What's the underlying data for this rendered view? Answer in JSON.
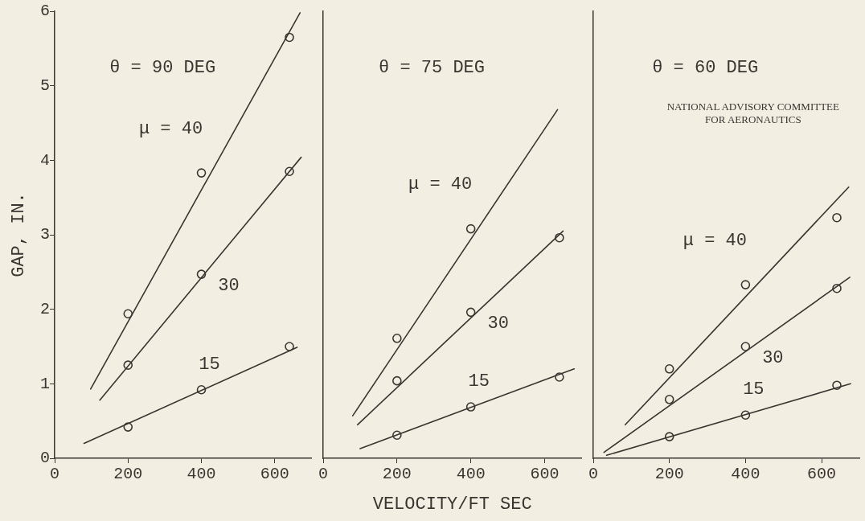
{
  "chart_data": [
    {
      "type": "scatter",
      "title": "θ = 90 DEG",
      "ylabel": "GAP, IN.",
      "xlim": [
        0,
        700
      ],
      "xticks": [
        0,
        200,
        400,
        600
      ],
      "ylim": [
        0,
        6
      ],
      "yticks": [
        0,
        1,
        2,
        3,
        4,
        5,
        6
      ],
      "grid": false,
      "legend": false,
      "series": [
        {
          "type": "scatter",
          "name": "μ = 40",
          "marker": "circle",
          "color": "#3a3530",
          "x": [
            200,
            400,
            640
          ],
          "values": [
            1.94,
            3.83,
            5.65
          ]
        },
        {
          "type": "scatter",
          "name": "30",
          "marker": "circle",
          "color": "#3a3530",
          "x": [
            200,
            400,
            640
          ],
          "values": [
            1.25,
            2.47,
            3.85
          ]
        },
        {
          "type": "scatter",
          "name": "15",
          "marker": "circle",
          "color": "#3a3530",
          "x": [
            200,
            400,
            640
          ],
          "values": [
            0.42,
            0.92,
            1.5
          ]
        },
        {
          "type": "line",
          "marker": "none",
          "color": "#3a3530",
          "x": [
            98,
            669
          ],
          "values": [
            0.93,
            5.98
          ]
        },
        {
          "type": "line",
          "marker": "none",
          "color": "#3a3530",
          "x": [
            123,
            672
          ],
          "values": [
            0.78,
            4.04
          ]
        },
        {
          "type": "line",
          "marker": "none",
          "color": "#3a3530",
          "x": [
            80,
            661
          ],
          "values": [
            0.2,
            1.49
          ]
        }
      ]
    },
    {
      "type": "scatter",
      "title": "θ = 75 DEG",
      "xlabel": "VELOCITY/FT SEC",
      "xlim": [
        0,
        700
      ],
      "xticks": [
        0,
        200,
        400,
        600
      ],
      "ylim": [
        0,
        6
      ],
      "yticks": [
        0,
        1,
        2,
        3,
        4,
        5,
        6
      ],
      "tick_labels": "x",
      "grid": false,
      "legend": false,
      "series": [
        {
          "type": "scatter",
          "name": "μ = 40",
          "marker": "circle",
          "color": "#3a3530",
          "x": [
            200,
            400
          ],
          "values": [
            1.61,
            3.08
          ]
        },
        {
          "type": "scatter",
          "name": "30",
          "marker": "circle",
          "color": "#3a3530",
          "x": [
            200,
            400,
            640
          ],
          "values": [
            1.04,
            1.96,
            2.96
          ]
        },
        {
          "type": "scatter",
          "name": "15",
          "marker": "circle",
          "color": "#3a3530",
          "x": [
            200,
            400,
            640
          ],
          "values": [
            0.31,
            0.69,
            1.09
          ]
        },
        {
          "type": "line",
          "marker": "none",
          "color": "#3a3530",
          "x": [
            80,
            635
          ],
          "values": [
            0.57,
            4.68
          ]
        },
        {
          "type": "line",
          "marker": "none",
          "color": "#3a3530",
          "x": [
            93,
            650
          ],
          "values": [
            0.45,
            3.05
          ]
        },
        {
          "type": "line",
          "marker": "none",
          "color": "#3a3530",
          "x": [
            100,
            680
          ],
          "values": [
            0.13,
            1.2
          ]
        }
      ]
    },
    {
      "type": "scatter",
      "title": "θ = 60 DEG",
      "xlim": [
        0,
        700
      ],
      "xticks": [
        0,
        200,
        400,
        600
      ],
      "ylim": [
        0,
        6
      ],
      "yticks": [
        0,
        1,
        2,
        3,
        4,
        5,
        6
      ],
      "tick_labels": "x",
      "grid": false,
      "legend": false,
      "series": [
        {
          "type": "scatter",
          "name": "μ = 40",
          "marker": "circle",
          "color": "#3a3530",
          "x": [
            200,
            400,
            640
          ],
          "values": [
            1.2,
            2.33,
            3.23
          ]
        },
        {
          "type": "scatter",
          "name": "30",
          "marker": "circle",
          "color": "#3a3530",
          "x": [
            200,
            400,
            640
          ],
          "values": [
            0.79,
            1.5,
            2.28
          ]
        },
        {
          "type": "scatter",
          "name": "15",
          "marker": "circle",
          "color": "#3a3530",
          "x": [
            200,
            400,
            640
          ],
          "values": [
            0.29,
            0.58,
            0.98
          ]
        },
        {
          "type": "line",
          "marker": "none",
          "color": "#3a3530",
          "x": [
            84,
            671
          ],
          "values": [
            0.45,
            3.64
          ]
        },
        {
          "type": "line",
          "marker": "none",
          "color": "#3a3530",
          "x": [
            28,
            674
          ],
          "values": [
            0.08,
            2.43
          ]
        },
        {
          "type": "line",
          "marker": "none",
          "color": "#3a3530",
          "x": [
            35,
            676
          ],
          "values": [
            0.04,
            1.0
          ]
        }
      ],
      "annotations": [
        "NATIONAL ADVISORY COMMITTEE\nFOR AERONAUTICS"
      ]
    }
  ]
}
